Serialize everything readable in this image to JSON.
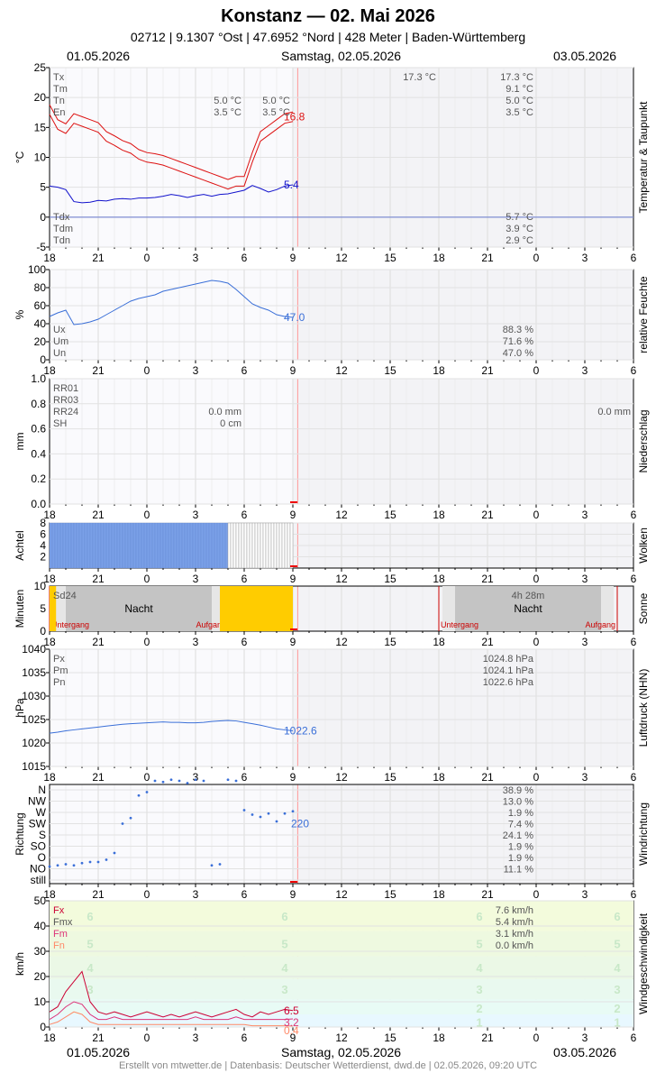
{
  "header": {
    "title": "Konstanz  —  02. Mai 2026",
    "subtitle": "02712  |  9.1307 °Ost  |  47.6952 °Nord  |  428 Meter  |  Baden-Württemberg"
  },
  "dates": {
    "left": "01.05.2026",
    "center": "Samstag, 02.05.2026",
    "right": "03.05.2026"
  },
  "footer": "Erstellt von mtwetter.de | Datenbasis: Deutscher Wetterdienst, dwd.de | 02.05.2026, 09:20 UTC",
  "x_tick_labels": [
    "18",
    "21",
    "0",
    "3",
    "6",
    "9",
    "12",
    "15",
    "18",
    "21",
    "0",
    "3",
    "6"
  ],
  "colors": {
    "temp": "#dd1111",
    "dew": "#1111cc",
    "blue": "#3a6fd8",
    "cloud": "#7aa0e8",
    "sun": "#ffcc00",
    "grid": "#dddddd",
    "now": "#ff9999",
    "wind_fx": "#cc0033"
  },
  "chart_data": [
    {
      "type": "line",
      "id": "temperature",
      "side_label": "Temperatur & Taupunkt",
      "ylabel": "°C",
      "ylim": [
        -5,
        25
      ],
      "yticks": [
        -5,
        0,
        5,
        10,
        15,
        20,
        25
      ],
      "x_hours": [
        0,
        0.5,
        1,
        1.5,
        2,
        2.5,
        3,
        3.5,
        4,
        4.5,
        5,
        5.5,
        6,
        6.5,
        7,
        7.5,
        8,
        8.5,
        9,
        9.5,
        10,
        10.5,
        11,
        11.5,
        12,
        12.5,
        13,
        13.5,
        14,
        14.5,
        15
      ],
      "series": [
        {
          "name": "T",
          "color": "#dd1111",
          "values": [
            18,
            15.5,
            14.8,
            16.5,
            16,
            15.5,
            15,
            13.5,
            12.8,
            12,
            11.5,
            10.5,
            10,
            9.8,
            9.5,
            9,
            8.5,
            8,
            7.5,
            7,
            6.5,
            6,
            5.5,
            6,
            6,
            10,
            13.5,
            14.5,
            15.5,
            16.5,
            16.8
          ]
        },
        {
          "name": "Td",
          "color": "#1111cc",
          "values": [
            5.2,
            5,
            4.6,
            2.6,
            2.4,
            2.5,
            2.8,
            2.7,
            3,
            3.1,
            3,
            3.2,
            3.2,
            3.3,
            3.5,
            3.8,
            3.6,
            3.3,
            3.6,
            3.8,
            3.5,
            3.8,
            3.9,
            4.2,
            4.5,
            5.3,
            4.8,
            4.2,
            4.6,
            5.2,
            5.4
          ]
        }
      ],
      "last_labels": [
        "16.8",
        "5.4"
      ],
      "stats_top": [
        [
          "Tx",
          "17.3 °C"
        ],
        [
          "Tm",
          "9.1 °C"
        ],
        [
          "Tn",
          "5.0 °C"
        ],
        [
          "En",
          "3.5 °C"
        ]
      ],
      "stats_bottom": [
        [
          "Tdx",
          "5.7 °C"
        ],
        [
          "Tdm",
          "3.9 °C"
        ],
        [
          "Tdn",
          "2.9 °C"
        ]
      ],
      "today_tmax": "17.3 °C",
      "mid_values": [
        "5.0 °C",
        "3.5 °C",
        "5.0 °C",
        "3.5 °C"
      ]
    },
    {
      "type": "line",
      "id": "humidity",
      "side_label": "relative Feuchte",
      "ylabel": "%",
      "ylim": [
        0,
        100
      ],
      "yticks": [
        0,
        20,
        40,
        60,
        80,
        100
      ],
      "series": [
        {
          "name": "U",
          "color": "#3a6fd8",
          "values": [
            48,
            52,
            55,
            39,
            40,
            42,
            45,
            50,
            55,
            60,
            65,
            68,
            70,
            72,
            76,
            78,
            80,
            82,
            84,
            86,
            88,
            87,
            85,
            78,
            70,
            62,
            58,
            55,
            50,
            48,
            47
          ]
        }
      ],
      "last_label": "47.0",
      "stats": [
        [
          "Ux",
          "88.3 %"
        ],
        [
          "Um",
          "71.6 %"
        ],
        [
          "Un",
          "47.0 %"
        ]
      ]
    },
    {
      "type": "bar",
      "id": "precipitation",
      "side_label": "Niederschlag",
      "ylabel": "mm",
      "ylim": [
        0,
        1
      ],
      "yticks": [
        "0.0",
        "0.2",
        "0.4",
        "0.6",
        "0.8",
        "1.0"
      ],
      "labels": [
        "RR01",
        "RR03",
        "RR24",
        "SH"
      ],
      "values_today": [
        "0.0 mm",
        "0 cm"
      ],
      "value_tomorrow": "0.0 mm"
    },
    {
      "type": "bar",
      "id": "clouds",
      "side_label": "Wolken",
      "ylabel": "Achtel",
      "ylim": [
        0,
        8
      ],
      "yticks": [
        2,
        4,
        6,
        8
      ],
      "value": 8,
      "overcast_hours": [
        0,
        11
      ],
      "grey_hours": [
        11,
        15
      ]
    },
    {
      "type": "bar",
      "id": "sunshine",
      "side_label": "Sonne",
      "ylabel": "Minuten",
      "ylim": [
        0,
        10
      ],
      "yticks": [
        0,
        5,
        10
      ],
      "label": "Sd24",
      "night": "Nacht",
      "duration_tomorrow": "4h 28m",
      "sunset": "Untergang",
      "sunrise": "Aufgang",
      "sun_hours": [
        [
          -0.5,
          0.4
        ],
        [
          10.5,
          15
        ]
      ],
      "night_hours": [
        [
          1,
          10
        ],
        [
          25,
          34
        ]
      ]
    },
    {
      "type": "line",
      "id": "pressure",
      "side_label": "Luftdruck (NHN)",
      "ylabel": "hPa",
      "ylim": [
        1015,
        1040
      ],
      "yticks": [
        1015,
        1020,
        1025,
        1030,
        1035,
        1040
      ],
      "series": [
        {
          "name": "P",
          "color": "#3a6fd8",
          "values": [
            1022.1,
            1022.3,
            1022.6,
            1022.8,
            1023,
            1023.2,
            1023.4,
            1023.6,
            1023.8,
            1024,
            1024.1,
            1024.2,
            1024.3,
            1024.4,
            1024.5,
            1024.4,
            1024.4,
            1024.3,
            1024.3,
            1024.4,
            1024.6,
            1024.7,
            1024.8,
            1024.7,
            1024.4,
            1024.1,
            1023.8,
            1023.4,
            1023,
            1022.8,
            1022.6
          ]
        }
      ],
      "last_label": "1022.6",
      "stats": [
        [
          "Px",
          "1024.8 hPa"
        ],
        [
          "Pm",
          "1024.1 hPa"
        ],
        [
          "Pn",
          "1022.6 hPa"
        ]
      ]
    },
    {
      "type": "scatter",
      "id": "wind_direction",
      "side_label": "Windrichtung",
      "ylabel": "Richtung",
      "categories": [
        "N",
        "NW",
        "W",
        "SW",
        "S",
        "SO",
        "O",
        "NO",
        "still"
      ],
      "series": [
        {
          "name": "dir",
          "color": "#3a6fd8",
          "points": [
            [
              0,
              1.2
            ],
            [
              0.5,
              1.3
            ],
            [
              1,
              1.4
            ],
            [
              1.5,
              1.3
            ],
            [
              2,
              1.5
            ],
            [
              2.5,
              1.6
            ],
            [
              3,
              1.6
            ],
            [
              3.5,
              1.8
            ],
            [
              4,
              2.4
            ],
            [
              4.5,
              5.0
            ],
            [
              5,
              5.5
            ],
            [
              5.5,
              7.5
            ],
            [
              6,
              7.8
            ],
            [
              6.5,
              8.8
            ],
            [
              7,
              8.7
            ],
            [
              7.5,
              8.9
            ],
            [
              8,
              8.8
            ],
            [
              8.5,
              8.6
            ],
            [
              9,
              8.9
            ],
            [
              9.5,
              8.8
            ],
            [
              10,
              1.3
            ],
            [
              10.5,
              1.4
            ],
            [
              11,
              8.9
            ],
            [
              11.5,
              8.8
            ],
            [
              12,
              6.2
            ],
            [
              12.5,
              5.8
            ],
            [
              13,
              5.6
            ],
            [
              13.5,
              5.9
            ],
            [
              14,
              5.2
            ],
            [
              14.5,
              5.9
            ],
            [
              15,
              6.1
            ]
          ]
        }
      ],
      "last_label": "220",
      "stats": [
        "38.9 %",
        "13.0 %",
        "1.9 %",
        "7.4 %",
        "24.1 %",
        "1.9 %",
        "1.9 %",
        "11.1 %"
      ]
    },
    {
      "type": "line",
      "id": "wind_speed",
      "side_label": "Windgeschwindigkeit",
      "ylabel": "km/h",
      "ylim": [
        0,
        50
      ],
      "yticks": [
        0,
        10,
        20,
        30,
        40,
        50
      ],
      "bft_labels": [
        "1",
        "2",
        "3",
        "4",
        "5",
        "6"
      ],
      "series": [
        {
          "name": "Fx",
          "color": "#cc0033",
          "values": [
            6,
            8,
            14,
            18,
            22,
            10,
            6,
            5,
            6,
            5,
            4,
            5,
            6,
            5,
            4,
            5,
            4,
            5,
            6,
            5,
            4,
            5,
            6,
            7,
            5,
            4,
            6,
            5,
            6,
            7,
            6.5
          ]
        },
        {
          "name": "Fm",
          "color": "#dd3377",
          "values": [
            3,
            5,
            8,
            10,
            9,
            5,
            3,
            3,
            4,
            3,
            3,
            3,
            3,
            3,
            3,
            3,
            3,
            3,
            4,
            3,
            3,
            3,
            3,
            4,
            3,
            3,
            3,
            3,
            3,
            3,
            3.2
          ]
        },
        {
          "name": "Fn",
          "color": "#ff8866",
          "values": [
            1,
            2,
            4,
            6,
            5,
            2,
            1,
            1,
            1,
            1,
            1,
            1,
            1,
            1,
            1,
            1,
            1,
            1,
            1,
            1,
            1,
            1,
            1,
            1,
            1,
            0.5,
            0.5,
            0.5,
            0.5,
            0.5,
            0.4
          ]
        }
      ],
      "last_labels": [
        "6.5",
        "3.2",
        "0.4"
      ],
      "stats": [
        [
          "Fx",
          "7.6 km/h"
        ],
        [
          "Fmx",
          "5.4 km/h"
        ],
        [
          "Fm",
          "3.1 km/h"
        ],
        [
          "Fn",
          "0.0 km/h"
        ]
      ]
    }
  ]
}
